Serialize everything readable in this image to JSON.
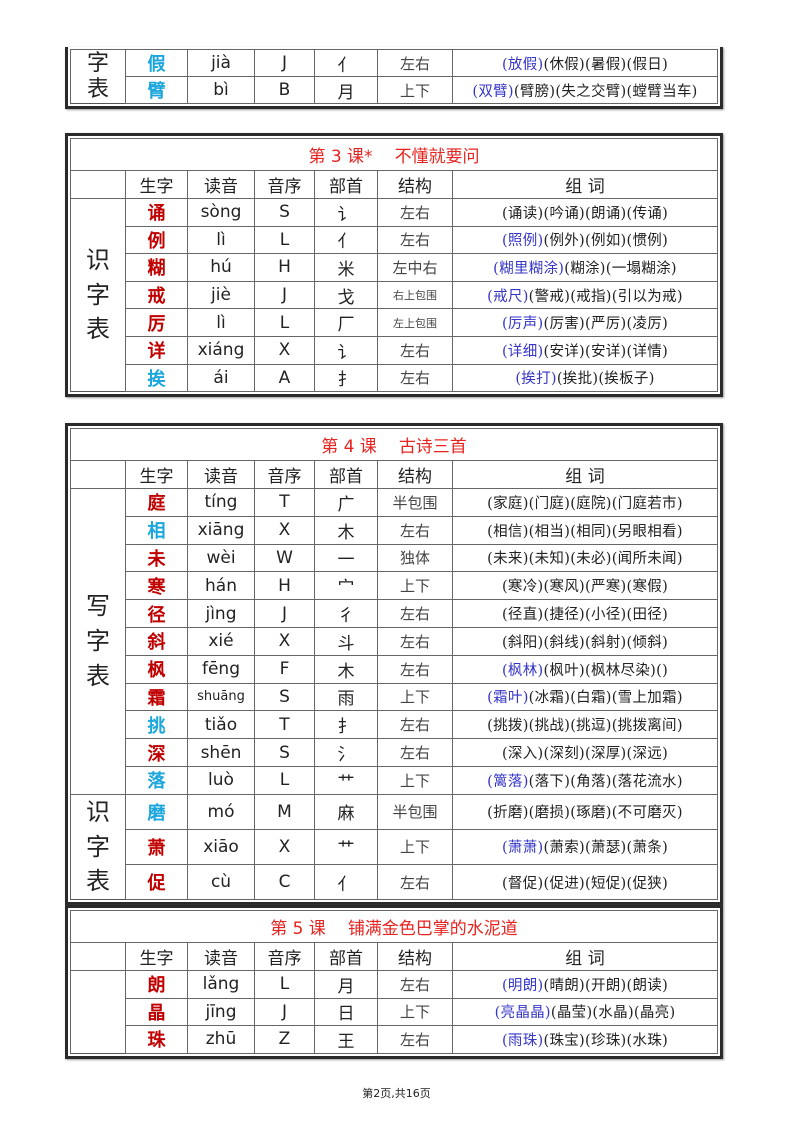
{
  "colors": {
    "char_red": "#c00000",
    "char_cyan": "#1ba6dc",
    "word_highlight": "#3535c8",
    "title_red": "#e8231f"
  },
  "headers": [
    "生字",
    "读音",
    "音序",
    "部首",
    "结构",
    "组  词"
  ],
  "tables": [
    {
      "title_num": "",
      "title_name": "",
      "partial": true,
      "groups": [
        {
          "label": "字表",
          "rows": [
            {
              "char": "假",
              "color": "cyan",
              "pinyin": "jià",
              "seq": "J",
              "radical": "亻",
              "structure": "左右",
              "words": [
                "(放假)",
                "(休假)",
                "(暑假)",
                "(假日)"
              ],
              "hl": 1
            },
            {
              "char": "臂",
              "color": "cyan",
              "pinyin": "bì",
              "seq": "B",
              "radical": "月",
              "structure": "上下",
              "words": [
                "(双臂)",
                "(臂膀)",
                "(失之交臂)",
                "(螳臂当车)"
              ],
              "hl": 1
            }
          ]
        }
      ]
    },
    {
      "title_num": "第 3 课*",
      "title_name": "不懂就要问",
      "groups": [
        {
          "label": "识字表",
          "rows": [
            {
              "char": "诵",
              "color": "red",
              "pinyin": "sòng",
              "seq": "S",
              "radical": "讠",
              "structure": "左右",
              "words": [
                "(诵读)",
                "(吟诵)",
                "(朗诵)",
                "(传诵)"
              ],
              "hl": 0
            },
            {
              "char": "例",
              "color": "red",
              "pinyin": "lì",
              "seq": "L",
              "radical": "亻",
              "structure": "左右",
              "words": [
                "(照例)",
                "(例外)",
                "(例如)",
                "(惯例)"
              ],
              "hl": 1
            },
            {
              "char": "糊",
              "color": "red",
              "pinyin": "hú",
              "seq": "H",
              "radical": "米",
              "structure": "左中右",
              "words": [
                "(糊里糊涂)",
                "(糊涂)",
                "(一塌糊涂)"
              ],
              "hl": 1
            },
            {
              "char": "戒",
              "color": "red",
              "pinyin": "jiè",
              "seq": "J",
              "radical": "戈",
              "structure": "右上包围",
              "words": [
                "(戒尺)",
                "(警戒)",
                "(戒指)",
                "(引以为戒)"
              ],
              "hl": 1
            },
            {
              "char": "厉",
              "color": "red",
              "pinyin": "lì",
              "seq": "L",
              "radical": "厂",
              "structure": "左上包围",
              "words": [
                "(厉声)",
                "(厉害)",
                "(严厉)",
                "(凌厉)"
              ],
              "hl": 1
            },
            {
              "char": "详",
              "color": "red",
              "pinyin": "xiáng",
              "seq": "X",
              "radical": "讠",
              "structure": "左右",
              "words": [
                "(详细)",
                "(安详)",
                "(安详)",
                "(详情)"
              ],
              "hl": 1
            },
            {
              "char": "挨",
              "color": "cyan",
              "pinyin": "ái",
              "seq": "A",
              "radical": "扌",
              "structure": "左右",
              "words": [
                "(挨打)",
                "(挨批)",
                "(挨板子)"
              ],
              "hl": 1
            }
          ]
        }
      ]
    },
    {
      "title_num": "第 4 课",
      "title_name": "古诗三首",
      "groups": [
        {
          "label": "写字表",
          "rows": [
            {
              "char": "庭",
              "color": "red",
              "pinyin": "tíng",
              "seq": "T",
              "radical": "广",
              "structure": "半包围",
              "words": [
                "(家庭)",
                "(门庭)",
                "(庭院)",
                "(门庭若市)"
              ],
              "hl": 0
            },
            {
              "char": "相",
              "color": "cyan",
              "pinyin": "xiāng",
              "seq": "X",
              "radical": "木",
              "structure": "左右",
              "words": [
                "(相信)",
                "(相当)",
                "(相同)",
                "(另眼相看)"
              ],
              "hl": 0
            },
            {
              "char": "未",
              "color": "red",
              "pinyin": "wèi",
              "seq": "W",
              "radical": "一",
              "structure": "独体",
              "words": [
                "(未来)",
                "(未知)",
                "(未必)",
                "(闻所未闻)"
              ],
              "hl": 0
            },
            {
              "char": "寒",
              "color": "red",
              "pinyin": "hán",
              "seq": "H",
              "radical": "宀",
              "structure": "上下",
              "words": [
                "(寒冷)",
                "(寒风)",
                "(严寒)",
                "(寒假)"
              ],
              "hl": 0
            },
            {
              "char": "径",
              "color": "red",
              "pinyin": "jìng",
              "seq": "J",
              "radical": "彳",
              "structure": "左右",
              "words": [
                "(径直)",
                "(捷径)",
                "(小径)",
                "(田径)"
              ],
              "hl": 0
            },
            {
              "char": "斜",
              "color": "red",
              "pinyin": "xié",
              "seq": "X",
              "radical": "斗",
              "structure": "左右",
              "words": [
                "(斜阳)",
                "(斜线)",
                "(斜射)",
                "(倾斜)"
              ],
              "hl": 0
            },
            {
              "char": "枫",
              "color": "red",
              "pinyin": "fēng",
              "seq": "F",
              "radical": "木",
              "structure": "左右",
              "words": [
                "(枫林)",
                "(枫叶)",
                "(枫林尽染)",
                "()"
              ],
              "hl": 1
            },
            {
              "char": "霜",
              "color": "red",
              "pinyin": "shuāng",
              "seq": "S",
              "radical": "雨",
              "structure": "上下",
              "words": [
                "(霜叶)",
                "(冰霜)",
                "(白霜)",
                "(雪上加霜)"
              ],
              "hl": 1
            },
            {
              "char": "挑",
              "color": "cyan",
              "pinyin": "tiǎo",
              "seq": "T",
              "radical": "扌",
              "structure": "左右",
              "words": [
                "(挑拨)",
                "(挑战)",
                "(挑逗)",
                "(挑拨离间)"
              ],
              "hl": 0
            },
            {
              "char": "深",
              "color": "red",
              "pinyin": "shēn",
              "seq": "S",
              "radical": "氵",
              "structure": "左右",
              "words": [
                "(深入)",
                "(深刻)",
                "(深厚)",
                "(深远)"
              ],
              "hl": 0
            },
            {
              "char": "落",
              "color": "cyan",
              "pinyin": "luò",
              "seq": "L",
              "radical": "艹",
              "structure": "上下",
              "words": [
                "(篱落)",
                "(落下)",
                "(角落)",
                "(落花流水)"
              ],
              "hl": 1
            }
          ]
        },
        {
          "label": "识字表",
          "rows": [
            {
              "char": "磨",
              "color": "cyan",
              "pinyin": "mó",
              "seq": "M",
              "radical": "麻",
              "structure": "半包围",
              "words": [
                "(折磨)",
                "(磨损)",
                "(琢磨)",
                "(不可磨灭)"
              ],
              "hl": 0
            },
            {
              "char": "萧",
              "color": "red",
              "pinyin": "xiāo",
              "seq": "X",
              "radical": "艹",
              "structure": "上下",
              "words": [
                "(萧萧)",
                "(萧索)",
                "(萧瑟)",
                "(萧条)"
              ],
              "hl": 1
            },
            {
              "char": "促",
              "color": "red",
              "pinyin": "cù",
              "seq": "C",
              "radical": "亻",
              "structure": "左右",
              "words": [
                "(督促)",
                "(促进)",
                "(短促)",
                "(促狭)"
              ],
              "hl": 0
            }
          ]
        }
      ]
    },
    {
      "title_num": "第 5 课",
      "title_name": "铺满金色巴掌的水泥道",
      "groups": [
        {
          "label": "",
          "rows": [
            {
              "char": "朗",
              "color": "red",
              "pinyin": "lǎng",
              "seq": "L",
              "radical": "月",
              "structure": "左右",
              "words": [
                "(明朗)",
                "(晴朗)",
                "(开朗)",
                "(朗读)"
              ],
              "hl": 1
            },
            {
              "char": "晶",
              "color": "red",
              "pinyin": "jīng",
              "seq": "J",
              "radical": "日",
              "structure": "上下",
              "words": [
                "(亮晶晶)",
                "(晶莹)",
                "(水晶)",
                "(晶亮)"
              ],
              "hl": 1
            },
            {
              "char": "珠",
              "color": "red",
              "pinyin": "zhū",
              "seq": "Z",
              "radical": "王",
              "structure": "左右",
              "words": [
                "(雨珠)",
                "(珠宝)",
                "(珍珠)",
                "(水珠)"
              ],
              "hl": 1
            }
          ]
        }
      ]
    }
  ],
  "footer": "第2页,共16页"
}
